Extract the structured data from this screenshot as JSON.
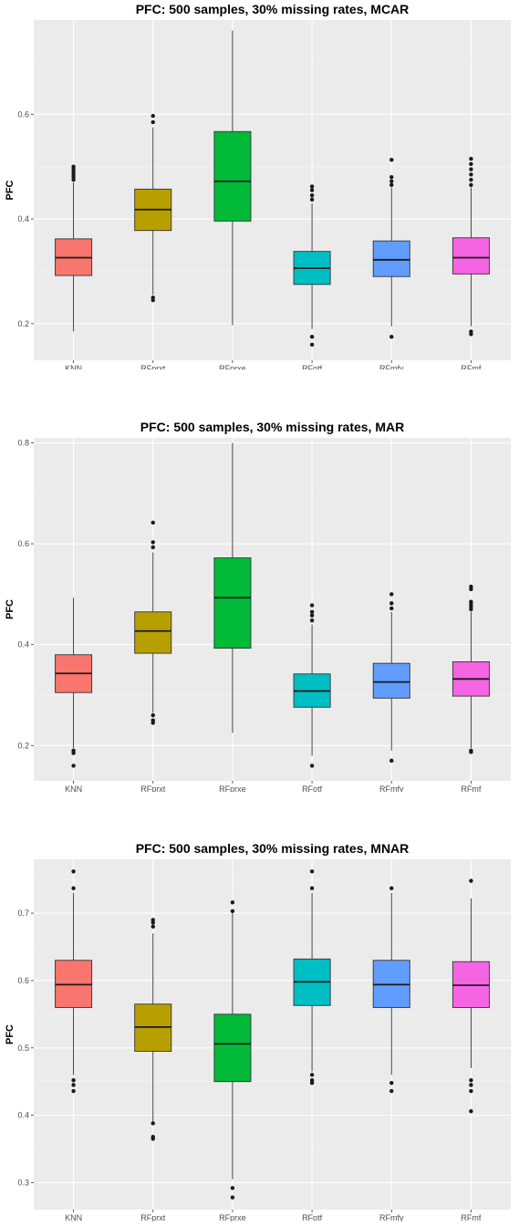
{
  "chart_data": [
    {
      "type": "box",
      "title": "PFC: 500 samples, 30% missing rates, MCAR",
      "ylabel": "PFC",
      "xlabel": "",
      "ylim": [
        0.13,
        0.78
      ],
      "yticks": [
        0.2,
        0.4,
        0.6
      ],
      "ytick_labels": [
        "0.2",
        "0.4",
        "0.6"
      ],
      "grid": true,
      "categories": [
        "KNN",
        "RFprxt",
        "RFprxe",
        "RFotf",
        "RFmfy",
        "RFmf"
      ],
      "colors": [
        "#F8766D",
        "#B79F00",
        "#00BA38",
        "#00BFC4",
        "#619CFF",
        "#F564E3"
      ],
      "boxes": [
        {
          "whisker_low": 0.185,
          "q1": 0.292,
          "median": 0.326,
          "q3": 0.362,
          "whisker_high": 0.47,
          "outliers": [
            0.475,
            0.48,
            0.485,
            0.49,
            0.495,
            0.5
          ]
        },
        {
          "whisker_low": 0.255,
          "q1": 0.378,
          "median": 0.418,
          "q3": 0.457,
          "whisker_high": 0.575,
          "outliers": [
            0.25,
            0.245,
            0.585,
            0.597
          ]
        },
        {
          "whisker_low": 0.197,
          "q1": 0.396,
          "median": 0.472,
          "q3": 0.567,
          "whisker_high": 0.76,
          "outliers": []
        },
        {
          "whisker_low": 0.19,
          "q1": 0.275,
          "median": 0.306,
          "q3": 0.338,
          "whisker_high": 0.43,
          "outliers": [
            0.175,
            0.16,
            0.437,
            0.445,
            0.455,
            0.462
          ]
        },
        {
          "whisker_low": 0.195,
          "q1": 0.29,
          "median": 0.322,
          "q3": 0.358,
          "whisker_high": 0.46,
          "outliers": [
            0.175,
            0.465,
            0.472,
            0.48,
            0.513
          ]
        },
        {
          "whisker_low": 0.195,
          "q1": 0.295,
          "median": 0.326,
          "q3": 0.364,
          "whisker_high": 0.46,
          "outliers": [
            0.185,
            0.18,
            0.465,
            0.475,
            0.485,
            0.495,
            0.505,
            0.515
          ]
        }
      ]
    },
    {
      "type": "box",
      "title": "PFC: 500 samples, 30% missing rates, MAR",
      "ylabel": "PFC",
      "xlabel": "",
      "ylim": [
        0.13,
        0.81
      ],
      "yticks": [
        0.2,
        0.4,
        0.6,
        0.8
      ],
      "ytick_labels": [
        "0.2",
        "0.4",
        "0.6",
        "0.8"
      ],
      "grid": true,
      "categories": [
        "KNN",
        "RFprxt",
        "RFprxe",
        "RFotf",
        "RFmfy",
        "RFmf"
      ],
      "colors": [
        "#F8766D",
        "#B79F00",
        "#00BA38",
        "#00BFC4",
        "#619CFF",
        "#F564E3"
      ],
      "boxes": [
        {
          "whisker_low": 0.195,
          "q1": 0.305,
          "median": 0.343,
          "q3": 0.38,
          "whisker_high": 0.493,
          "outliers": [
            0.19,
            0.185,
            0.16
          ]
        },
        {
          "whisker_low": 0.265,
          "q1": 0.383,
          "median": 0.427,
          "q3": 0.465,
          "whisker_high": 0.583,
          "outliers": [
            0.26,
            0.25,
            0.245,
            0.593,
            0.603,
            0.642
          ]
        },
        {
          "whisker_low": 0.225,
          "q1": 0.393,
          "median": 0.493,
          "q3": 0.572,
          "whisker_high": 0.8,
          "outliers": []
        },
        {
          "whisker_low": 0.18,
          "q1": 0.276,
          "median": 0.308,
          "q3": 0.342,
          "whisker_high": 0.44,
          "outliers": [
            0.16,
            0.448,
            0.458,
            0.465,
            0.478
          ]
        },
        {
          "whisker_low": 0.19,
          "q1": 0.294,
          "median": 0.326,
          "q3": 0.363,
          "whisker_high": 0.465,
          "outliers": [
            0.17,
            0.472,
            0.482,
            0.5
          ]
        },
        {
          "whisker_low": 0.195,
          "q1": 0.298,
          "median": 0.332,
          "q3": 0.366,
          "whisker_high": 0.465,
          "outliers": [
            0.19,
            0.187,
            0.47,
            0.475,
            0.48,
            0.485,
            0.51,
            0.515
          ]
        }
      ]
    },
    {
      "type": "box",
      "title": "PFC: 500 samples, 30% missing rates, MNAR",
      "ylabel": "PFC",
      "xlabel": "",
      "ylim": [
        0.26,
        0.78
      ],
      "yticks": [
        0.3,
        0.4,
        0.5,
        0.6,
        0.7
      ],
      "ytick_labels": [
        "0.3",
        "0.4",
        "0.5",
        "0.6",
        "0.7"
      ],
      "grid": true,
      "categories": [
        "KNN",
        "RFprxt",
        "RFprxe",
        "RFotf",
        "RFmfy",
        "RFmf"
      ],
      "colors": [
        "#F8766D",
        "#B79F00",
        "#00BA38",
        "#00BFC4",
        "#619CFF",
        "#F564E3"
      ],
      "boxes": [
        {
          "whisker_low": 0.46,
          "q1": 0.56,
          "median": 0.594,
          "q3": 0.63,
          "whisker_high": 0.73,
          "outliers": [
            0.452,
            0.445,
            0.436,
            0.737,
            0.762
          ]
        },
        {
          "whisker_low": 0.39,
          "q1": 0.495,
          "median": 0.531,
          "q3": 0.565,
          "whisker_high": 0.67,
          "outliers": [
            0.388,
            0.368,
            0.365,
            0.68,
            0.686,
            0.69
          ]
        },
        {
          "whisker_low": 0.305,
          "q1": 0.45,
          "median": 0.506,
          "q3": 0.55,
          "whisker_high": 0.7,
          "outliers": [
            0.292,
            0.278,
            0.703,
            0.716
          ]
        },
        {
          "whisker_low": 0.465,
          "q1": 0.563,
          "median": 0.598,
          "q3": 0.632,
          "whisker_high": 0.73,
          "outliers": [
            0.46,
            0.452,
            0.448,
            0.737,
            0.762
          ]
        },
        {
          "whisker_low": 0.46,
          "q1": 0.56,
          "median": 0.594,
          "q3": 0.63,
          "whisker_high": 0.73,
          "outliers": [
            0.448,
            0.436,
            0.737
          ]
        },
        {
          "whisker_low": 0.47,
          "q1": 0.56,
          "median": 0.593,
          "q3": 0.628,
          "whisker_high": 0.722,
          "outliers": [
            0.452,
            0.445,
            0.436,
            0.406,
            0.748
          ]
        }
      ]
    }
  ]
}
